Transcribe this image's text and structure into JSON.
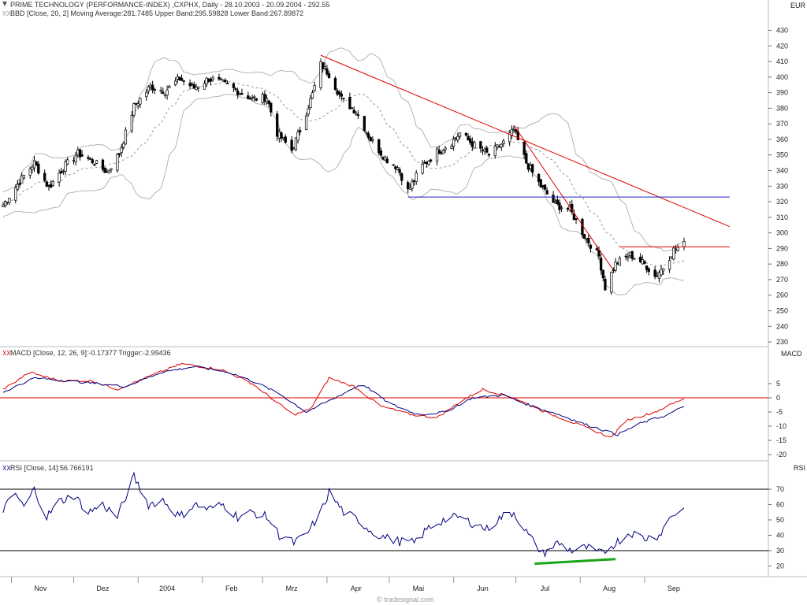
{
  "chart_data": [
    {
      "type": "candlestick",
      "title": "PRIME TECHNOLOGY (PERFORMANCE-INDEX) ,CXPHX, Daily - 28.10.2003 - 20.09.2004 - 292.55",
      "legend": "BBD [Close, 20, 2] Moving Average:281.7485 Upper Band:295.59828 Lower Band:267.89872",
      "unit_label": "EUR",
      "ylim": [
        225,
        438
      ],
      "yticks": [
        "430",
        "420",
        "410",
        "400",
        "390",
        "380",
        "370",
        "360",
        "350",
        "340",
        "330",
        "320",
        "310",
        "300",
        "290",
        "280",
        "270",
        "260",
        "250",
        "240",
        "230"
      ],
      "x_months": [
        "Nov",
        "Dez",
        "2004",
        "Feb",
        "Mrz",
        "Apr",
        "Mai",
        "Jun",
        "Jul",
        "Aug",
        "Sep"
      ],
      "close_keypoints": [
        {
          "d": "2003-10-28",
          "v": 318
        },
        {
          "d": "2003-11-05",
          "v": 333
        },
        {
          "d": "2003-11-12",
          "v": 345
        },
        {
          "d": "2003-11-19",
          "v": 329
        },
        {
          "d": "2003-11-26",
          "v": 342
        },
        {
          "d": "2003-12-03",
          "v": 351
        },
        {
          "d": "2003-12-10",
          "v": 346
        },
        {
          "d": "2003-12-17",
          "v": 339
        },
        {
          "d": "2003-12-23",
          "v": 351
        },
        {
          "d": "2003-12-30",
          "v": 381
        },
        {
          "d": "2004-01-07",
          "v": 394
        },
        {
          "d": "2004-01-14",
          "v": 391
        },
        {
          "d": "2004-01-21",
          "v": 399
        },
        {
          "d": "2004-01-28",
          "v": 393
        },
        {
          "d": "2004-02-04",
          "v": 399
        },
        {
          "d": "2004-02-11",
          "v": 396
        },
        {
          "d": "2004-02-18",
          "v": 391
        },
        {
          "d": "2004-02-25",
          "v": 386
        },
        {
          "d": "2004-03-03",
          "v": 387
        },
        {
          "d": "2004-03-08",
          "v": 364
        },
        {
          "d": "2004-03-15",
          "v": 353
        },
        {
          "d": "2004-03-19",
          "v": 366
        },
        {
          "d": "2004-03-25",
          "v": 389
        },
        {
          "d": "2004-03-29",
          "v": 408
        },
        {
          "d": "2004-04-02",
          "v": 402
        },
        {
          "d": "2004-04-08",
          "v": 386
        },
        {
          "d": "2004-04-15",
          "v": 378
        },
        {
          "d": "2004-04-22",
          "v": 360
        },
        {
          "d": "2004-04-29",
          "v": 348
        },
        {
          "d": "2004-05-05",
          "v": 342
        },
        {
          "d": "2004-05-10",
          "v": 327
        },
        {
          "d": "2004-05-17",
          "v": 343
        },
        {
          "d": "2004-05-24",
          "v": 352
        },
        {
          "d": "2004-05-31",
          "v": 358
        },
        {
          "d": "2004-06-04",
          "v": 364
        },
        {
          "d": "2004-06-11",
          "v": 356
        },
        {
          "d": "2004-06-18",
          "v": 350
        },
        {
          "d": "2004-06-25",
          "v": 358
        },
        {
          "d": "2004-06-30",
          "v": 366
        },
        {
          "d": "2004-07-06",
          "v": 345
        },
        {
          "d": "2004-07-13",
          "v": 330
        },
        {
          "d": "2004-07-20",
          "v": 318
        },
        {
          "d": "2004-07-27",
          "v": 315
        },
        {
          "d": "2004-08-03",
          "v": 298
        },
        {
          "d": "2004-08-10",
          "v": 285
        },
        {
          "d": "2004-08-13",
          "v": 265
        },
        {
          "d": "2004-08-18",
          "v": 280
        },
        {
          "d": "2004-08-25",
          "v": 286
        },
        {
          "d": "2004-09-01",
          "v": 280
        },
        {
          "d": "2004-09-06",
          "v": 272
        },
        {
          "d": "2004-09-10",
          "v": 278
        },
        {
          "d": "2004-09-15",
          "v": 289
        },
        {
          "d": "2004-09-20",
          "v": 292.55
        }
      ],
      "trendlines": [
        {
          "color": "#e00000",
          "from": {
            "d": "2004-03-29",
            "v": 414
          },
          "to": {
            "d": "2004-10-12",
            "v": 304
          }
        },
        {
          "color": "#e00000",
          "from": {
            "d": "2004-06-30",
            "v": 369
          },
          "to": {
            "d": "2004-08-17",
            "v": 276
          }
        },
        {
          "color": "#e00000",
          "from": {
            "d": "2004-08-20",
            "v": 291
          },
          "to": {
            "d": "2004-10-12",
            "v": 291
          }
        },
        {
          "color": "#2222cc",
          "from": {
            "d": "2004-05-10",
            "v": 323
          },
          "to": {
            "d": "2004-10-12",
            "v": 323
          }
        }
      ],
      "colors": {
        "candle": "#000000",
        "bands": "#b5b5b5",
        "moving_average": "#999999"
      }
    },
    {
      "type": "line",
      "legend": "MACD [Close, 12, 26, 9]:-0.17377 Trigger:-2.99436",
      "unit_label": "MACD",
      "ylim": [
        -22,
        8
      ],
      "yticks": [
        "5",
        "0",
        "-5",
        "-10",
        "-15",
        "-20"
      ],
      "reference_line": 0,
      "series": [
        {
          "name": "MACD",
          "color": "#e00000",
          "keypoints": [
            {
              "d": "2003-10-28",
              "v": 3
            },
            {
              "d": "2003-11-10",
              "v": 9
            },
            {
              "d": "2003-11-24",
              "v": 6
            },
            {
              "d": "2003-12-10",
              "v": 6
            },
            {
              "d": "2003-12-22",
              "v": 3
            },
            {
              "d": "2004-01-08",
              "v": 8
            },
            {
              "d": "2004-01-22",
              "v": 12
            },
            {
              "d": "2004-02-10",
              "v": 10
            },
            {
              "d": "2004-02-25",
              "v": 5
            },
            {
              "d": "2004-03-05",
              "v": 0
            },
            {
              "d": "2004-03-16",
              "v": -6
            },
            {
              "d": "2004-03-24",
              "v": -4
            },
            {
              "d": "2004-04-02",
              "v": 7
            },
            {
              "d": "2004-04-14",
              "v": 4
            },
            {
              "d": "2004-04-27",
              "v": -3
            },
            {
              "d": "2004-05-12",
              "v": -6
            },
            {
              "d": "2004-05-24",
              "v": -7
            },
            {
              "d": "2004-06-05",
              "v": -1
            },
            {
              "d": "2004-06-15",
              "v": 3
            },
            {
              "d": "2004-06-30",
              "v": 0
            },
            {
              "d": "2004-07-15",
              "v": -5
            },
            {
              "d": "2004-08-02",
              "v": -10
            },
            {
              "d": "2004-08-16",
              "v": -14
            },
            {
              "d": "2004-08-23",
              "v": -8
            },
            {
              "d": "2004-09-06",
              "v": -5
            },
            {
              "d": "2004-09-20",
              "v": -0.17377
            }
          ]
        },
        {
          "name": "Trigger",
          "color": "#000080",
          "keypoints": [
            {
              "d": "2003-10-28",
              "v": 2
            },
            {
              "d": "2003-11-12",
              "v": 7
            },
            {
              "d": "2003-11-28",
              "v": 6
            },
            {
              "d": "2003-12-12",
              "v": 5
            },
            {
              "d": "2003-12-26",
              "v": 4
            },
            {
              "d": "2004-01-12",
              "v": 9
            },
            {
              "d": "2004-01-28",
              "v": 11
            },
            {
              "d": "2004-02-14",
              "v": 9
            },
            {
              "d": "2004-02-28",
              "v": 5
            },
            {
              "d": "2004-03-10",
              "v": 1
            },
            {
              "d": "2004-03-22",
              "v": -5
            },
            {
              "d": "2004-04-05",
              "v": 0
            },
            {
              "d": "2004-04-18",
              "v": 5
            },
            {
              "d": "2004-05-01",
              "v": -2
            },
            {
              "d": "2004-05-15",
              "v": -6
            },
            {
              "d": "2004-05-28",
              "v": -5
            },
            {
              "d": "2004-06-10",
              "v": 0
            },
            {
              "d": "2004-06-25",
              "v": 1
            },
            {
              "d": "2004-07-05",
              "v": -2
            },
            {
              "d": "2004-07-22",
              "v": -6
            },
            {
              "d": "2004-08-06",
              "v": -10
            },
            {
              "d": "2004-08-19",
              "v": -13
            },
            {
              "d": "2004-08-30",
              "v": -9
            },
            {
              "d": "2004-09-12",
              "v": -6
            },
            {
              "d": "2004-09-20",
              "v": -2.99436
            }
          ]
        }
      ]
    },
    {
      "type": "line",
      "legend": "RSI [Close, 14]:56.766191",
      "unit_label": "RSI",
      "ylim": [
        16,
        78
      ],
      "yticks": [
        "70",
        "60",
        "50",
        "40",
        "30",
        "20"
      ],
      "reference_lines": [
        70,
        30
      ],
      "watermark": "© tradesignal.com",
      "series": [
        {
          "name": "RSI",
          "color": "#000080",
          "keypoints": [
            {
              "d": "2003-10-28",
              "v": 57
            },
            {
              "d": "2003-11-03",
              "v": 67
            },
            {
              "d": "2003-11-07",
              "v": 58
            },
            {
              "d": "2003-11-12",
              "v": 70
            },
            {
              "d": "2003-11-18",
              "v": 52
            },
            {
              "d": "2003-11-24",
              "v": 62
            },
            {
              "d": "2003-12-01",
              "v": 66
            },
            {
              "d": "2003-12-08",
              "v": 55
            },
            {
              "d": "2003-12-15",
              "v": 60
            },
            {
              "d": "2003-12-22",
              "v": 52
            },
            {
              "d": "2003-12-30",
              "v": 78
            },
            {
              "d": "2004-01-06",
              "v": 60
            },
            {
              "d": "2004-01-13",
              "v": 63
            },
            {
              "d": "2004-01-21",
              "v": 52
            },
            {
              "d": "2004-01-28",
              "v": 60
            },
            {
              "d": "2004-02-04",
              "v": 57
            },
            {
              "d": "2004-02-11",
              "v": 60
            },
            {
              "d": "2004-02-18",
              "v": 52
            },
            {
              "d": "2004-02-25",
              "v": 55
            },
            {
              "d": "2004-03-03",
              "v": 52
            },
            {
              "d": "2004-03-09",
              "v": 40
            },
            {
              "d": "2004-03-16",
              "v": 35
            },
            {
              "d": "2004-03-22",
              "v": 40
            },
            {
              "d": "2004-03-29",
              "v": 55
            },
            {
              "d": "2004-04-02",
              "v": 68
            },
            {
              "d": "2004-04-09",
              "v": 55
            },
            {
              "d": "2004-04-16",
              "v": 50
            },
            {
              "d": "2004-04-23",
              "v": 42
            },
            {
              "d": "2004-04-30",
              "v": 38
            },
            {
              "d": "2004-05-06",
              "v": 36
            },
            {
              "d": "2004-05-13",
              "v": 35
            },
            {
              "d": "2004-05-20",
              "v": 45
            },
            {
              "d": "2004-05-27",
              "v": 50
            },
            {
              "d": "2004-06-03",
              "v": 52
            },
            {
              "d": "2004-06-10",
              "v": 48
            },
            {
              "d": "2004-06-17",
              "v": 44
            },
            {
              "d": "2004-06-24",
              "v": 52
            },
            {
              "d": "2004-06-30",
              "v": 55
            },
            {
              "d": "2004-07-07",
              "v": 40
            },
            {
              "d": "2004-07-14",
              "v": 28
            },
            {
              "d": "2004-07-21",
              "v": 35
            },
            {
              "d": "2004-07-28",
              "v": 30
            },
            {
              "d": "2004-08-04",
              "v": 32
            },
            {
              "d": "2004-08-11",
              "v": 28
            },
            {
              "d": "2004-08-18",
              "v": 35
            },
            {
              "d": "2004-08-25",
              "v": 42
            },
            {
              "d": "2004-09-01",
              "v": 38
            },
            {
              "d": "2004-09-08",
              "v": 40
            },
            {
              "d": "2004-09-14",
              "v": 53
            },
            {
              "d": "2004-09-20",
              "v": 56.766191
            }
          ]
        }
      ]
    }
  ],
  "green_trendline": {
    "color": "#1aa51a",
    "from": {
      "d": "2004-07-10",
      "v": 21.5
    },
    "to": {
      "d": "2004-08-18",
      "v": 24.5
    }
  }
}
